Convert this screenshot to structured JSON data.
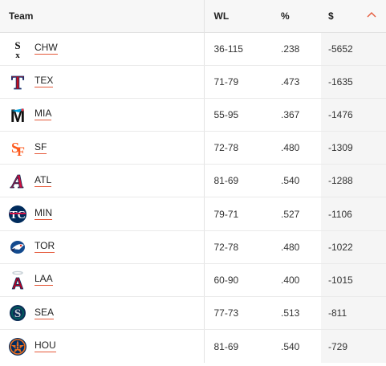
{
  "header": {
    "team": "Team",
    "wl": "WL",
    "pct": "%",
    "amount": "$"
  },
  "colors": {
    "link_underline": "#e5593a",
    "sort_arrow": "#e5593a"
  },
  "rows": [
    {
      "team": "CHW",
      "wl": "36-115",
      "pct": ".238",
      "amount": "-5652",
      "icon": "white-sox-logo-icon"
    },
    {
      "team": "TEX",
      "wl": "71-79",
      "pct": ".473",
      "amount": "-1635",
      "icon": "rangers-logo-icon"
    },
    {
      "team": "MIA",
      "wl": "55-95",
      "pct": ".367",
      "amount": "-1476",
      "icon": "marlins-logo-icon"
    },
    {
      "team": "SF",
      "wl": "72-78",
      "pct": ".480",
      "amount": "-1309",
      "icon": "giants-logo-icon"
    },
    {
      "team": "ATL",
      "wl": "81-69",
      "pct": ".540",
      "amount": "-1288",
      "icon": "braves-logo-icon"
    },
    {
      "team": "MIN",
      "wl": "79-71",
      "pct": ".527",
      "amount": "-1106",
      "icon": "twins-logo-icon"
    },
    {
      "team": "TOR",
      "wl": "72-78",
      "pct": ".480",
      "amount": "-1022",
      "icon": "blue-jays-logo-icon"
    },
    {
      "team": "LAA",
      "wl": "60-90",
      "pct": ".400",
      "amount": "-1015",
      "icon": "angels-logo-icon"
    },
    {
      "team": "SEA",
      "wl": "77-73",
      "pct": ".513",
      "amount": "-811",
      "icon": "mariners-logo-icon"
    },
    {
      "team": "HOU",
      "wl": "81-69",
      "pct": ".540",
      "amount": "-729",
      "icon": "astros-logo-icon"
    }
  ]
}
